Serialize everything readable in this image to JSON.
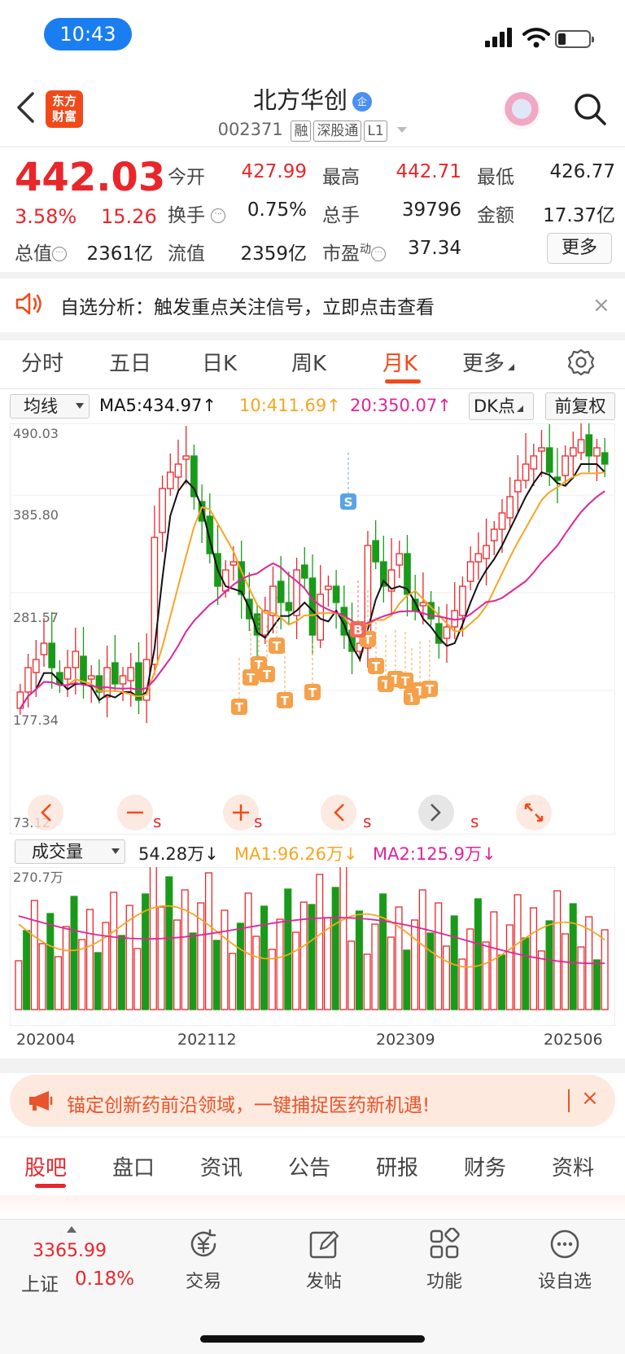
{
  "status_bar": {
    "time": "10:43"
  },
  "header": {
    "brand_line1": "东方",
    "brand_line2": "财富",
    "stock_name": "北方华创",
    "verify_badge": "企",
    "stock_code": "002371",
    "tags": [
      "融",
      "深股通",
      "L1"
    ]
  },
  "quote": {
    "price": "442.03",
    "change_pct": "3.58%",
    "change": "15.26",
    "open_label": "今开",
    "open": "427.99",
    "high_label": "最高",
    "high": "442.71",
    "low_label": "最低",
    "low": "426.77",
    "turnover_label": "换手",
    "turnover": "0.75%",
    "volume_label": "总手",
    "volume": "39796",
    "amount_label": "金额",
    "amount": "17.37亿",
    "mktcap_label": "总值",
    "mktcap": "2361亿",
    "float_label": "流值",
    "float_cap": "2359亿",
    "pe_label": "市盈",
    "pe_sup": "动",
    "pe": "37.34",
    "more": "更多"
  },
  "analysis": {
    "text": "自选分析：触发重点关注信号，立即点击查看",
    "close": "×"
  },
  "chart_tabs": [
    "分时",
    "五日",
    "日K",
    "周K",
    "月K",
    "更多"
  ],
  "active_tab": "月K",
  "ma_row": {
    "selector": "均线",
    "ma5": "MA5:434.97↑",
    "ma10": "10:411.69↑",
    "ma20": "20:350.07↑",
    "dk": "DK点",
    "adjust": "前复权"
  },
  "colors": {
    "up": "#e8262b",
    "down": "#1a9a1a",
    "ma5": "#111111",
    "ma10": "#f5a623",
    "ma20": "#e0249a",
    "signal_t": "#f5a04a",
    "signal_s": "#5aa3e8",
    "signal_b": "#f06a5a"
  },
  "chart_data": {
    "type": "candlestick",
    "title": "",
    "y_ticks": [
      "490.03",
      "385.80",
      "281.57",
      "177.34",
      "73.12"
    ],
    "ylim": [
      73.12,
      490.03
    ],
    "x_ticks": [
      "202004",
      "202112",
      "202309",
      "202506"
    ],
    "signals": [
      {
        "label": "S",
        "kind": "sell"
      },
      {
        "label": "B",
        "kind": "buy"
      },
      {
        "label": "T",
        "kind": "t"
      }
    ],
    "volume": {
      "selector": "成交量",
      "value": "54.28万↓",
      "ma1": "MA1:96.26万↓",
      "ma2": "MA2:125.9万↓",
      "max_label": "270.7万"
    }
  },
  "chart_controls": [
    "s",
    "s",
    "s",
    "s"
  ],
  "ad": {
    "text": "锚定创新药前沿领域，一键捕捉医药新机遇!",
    "close": "×"
  },
  "bottom_tabs": [
    "股吧",
    "盘口",
    "资讯",
    "公告",
    "研报",
    "财务",
    "资料"
  ],
  "bottom_nav": {
    "index_value": "3365.99",
    "index_name": "上证",
    "index_pct": "0.18%",
    "items": [
      "交易",
      "发帖",
      "功能",
      "设自选"
    ]
  }
}
